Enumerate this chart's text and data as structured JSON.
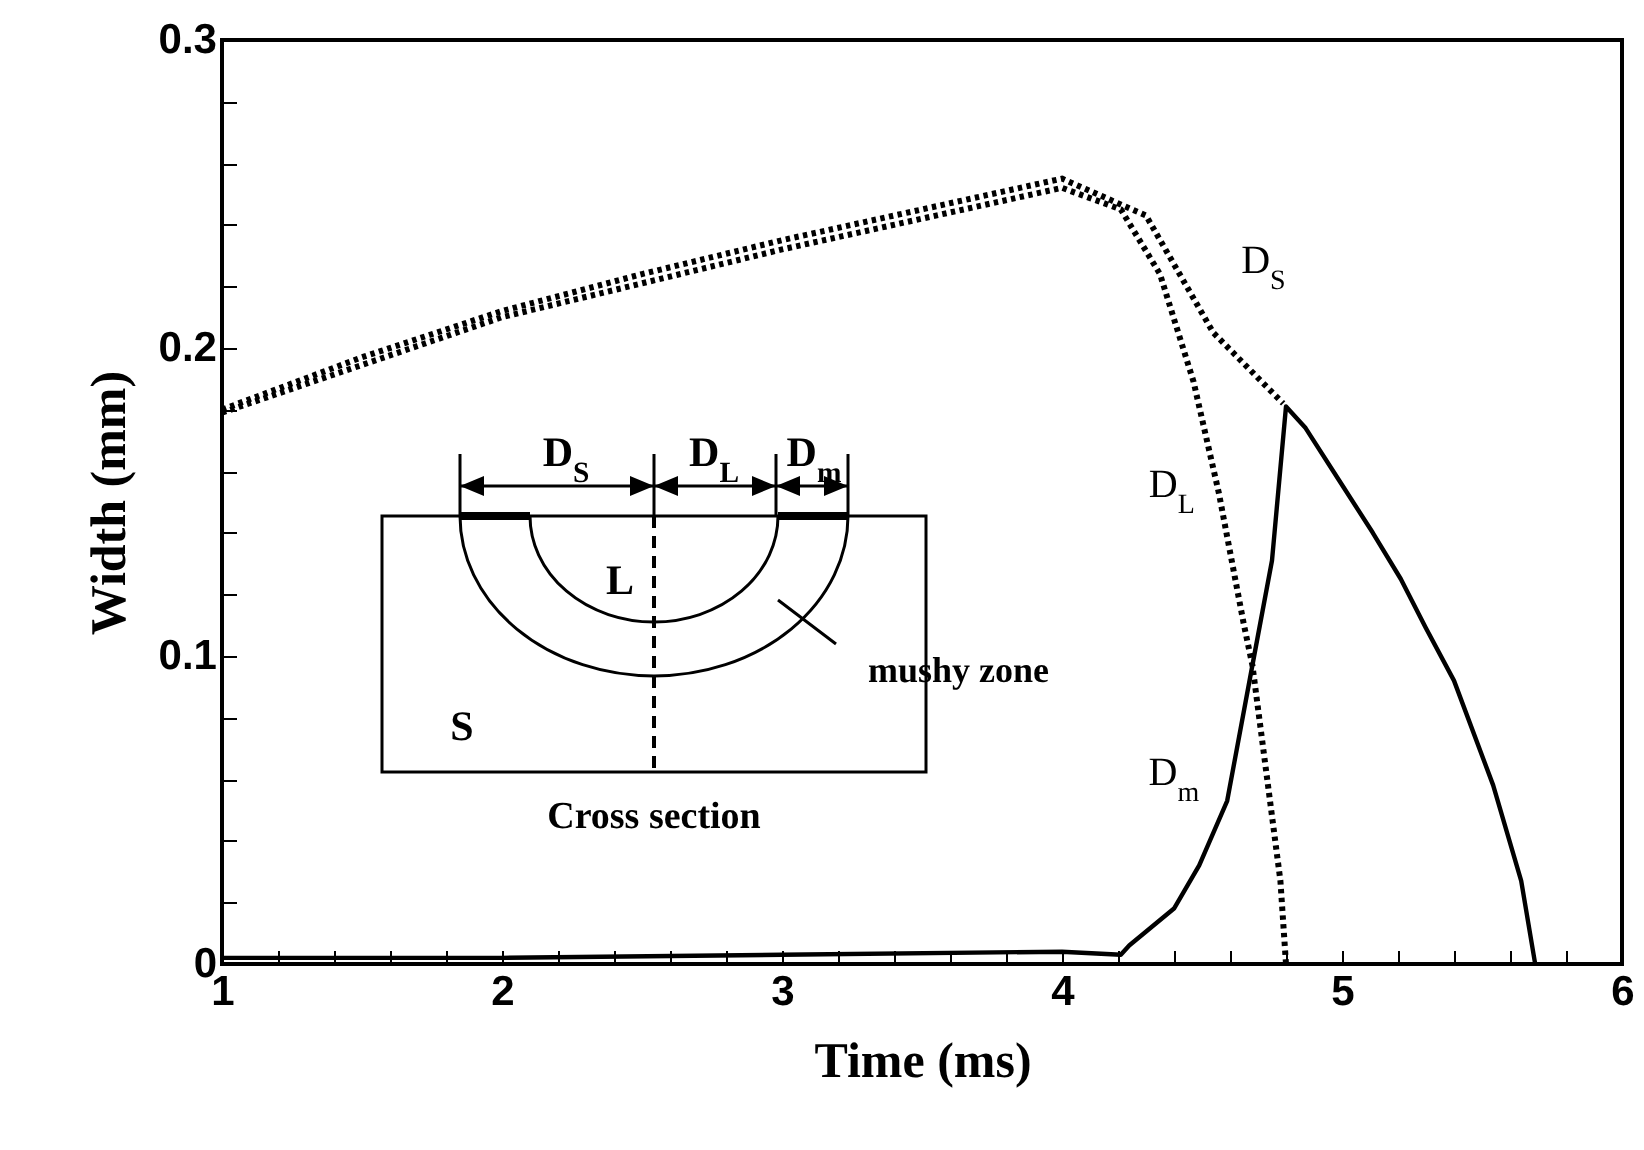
{
  "chart_data": {
    "type": "line",
    "xlabel": "Time (ms)",
    "ylabel": "Width (mm)",
    "xlim": [
      1,
      6
    ],
    "ylim": [
      0,
      0.3
    ],
    "xticks": [
      1,
      {
        "value": 1.2,
        "label": null
      },
      {
        "value": 1.4,
        "label": null
      },
      {
        "value": 1.6,
        "label": null
      },
      {
        "value": 1.8,
        "label": null
      },
      2,
      {
        "value": 2.2,
        "label": null
      },
      {
        "value": 2.4,
        "label": null
      },
      {
        "value": 2.6,
        "label": null
      },
      {
        "value": 2.8,
        "label": null
      },
      3,
      {
        "value": 3.2,
        "label": null
      },
      {
        "value": 3.4,
        "label": null
      },
      {
        "value": 3.6,
        "label": null
      },
      {
        "value": 3.8,
        "label": null
      },
      4,
      {
        "value": 4.2,
        "label": null
      },
      {
        "value": 4.4,
        "label": null
      },
      {
        "value": 4.6,
        "label": null
      },
      {
        "value": 4.8,
        "label": null
      },
      5,
      {
        "value": 5.2,
        "label": null
      },
      {
        "value": 5.4,
        "label": null
      },
      {
        "value": 5.6,
        "label": null
      },
      {
        "value": 5.8,
        "label": null
      },
      6
    ],
    "yticks": [
      0,
      {
        "value": 0.02,
        "label": null
      },
      {
        "value": 0.04,
        "label": null
      },
      {
        "value": 0.06,
        "label": null
      },
      {
        "value": 0.08,
        "label": null
      },
      0.1,
      {
        "value": 0.12,
        "label": null
      },
      {
        "value": 0.14,
        "label": null
      },
      {
        "value": 0.16,
        "label": null
      },
      {
        "value": 0.18,
        "label": null
      },
      0.2,
      {
        "value": 0.22,
        "label": null
      },
      {
        "value": 0.24,
        "label": null
      },
      {
        "value": 0.26,
        "label": null
      },
      {
        "value": 0.28,
        "label": null
      },
      0.3
    ],
    "series": [
      {
        "name": "D$_{S}$",
        "color": "#000000",
        "line_style": "dotted",
        "x": [
          1,
          1.5,
          2,
          2.5,
          3,
          3.5,
          4,
          4.3,
          4.54,
          4.79
        ],
        "values": [
          0.18,
          0.197,
          0.212,
          0.224,
          0.235,
          0.245,
          0.255,
          0.243,
          0.205,
          0.182
        ]
      },
      {
        "name": "D$_{L}$",
        "color": "#000000",
        "line_style": "dotted",
        "x": [
          1,
          2,
          3,
          4,
          4.21,
          4.35,
          4.47,
          4.56,
          4.65,
          4.68,
          4.73,
          4.78,
          4.8
        ],
        "values": [
          0.179,
          0.21,
          0.232,
          0.252,
          0.245,
          0.224,
          0.189,
          0.153,
          0.11,
          0.097,
          0.062,
          0.027,
          0
        ]
      },
      {
        "name": "D$_{m}$",
        "color": "#000000",
        "line_style": "solid",
        "x": [
          1,
          2,
          3,
          4,
          4.21,
          4.24,
          4.4,
          4.49,
          4.59,
          4.68,
          4.75,
          4.8,
          4.87,
          4.99,
          5.11,
          5.21,
          5.3,
          5.4,
          5.54,
          5.64,
          5.69
        ],
        "values": [
          0.002,
          0.002,
          0.003,
          0.004,
          0.003,
          0.006,
          0.018,
          0.032,
          0.053,
          0.097,
          0.131,
          0.181,
          0.174,
          0.157,
          0.14,
          0.125,
          0.109,
          0.092,
          0.058,
          0.027,
          0
        ]
      }
    ],
    "annotations": [
      "D$_{S}$",
      "D$_{L}$",
      "D$_{m}$",
      "L",
      "S",
      "mushy zone",
      "Cross section"
    ]
  }
}
